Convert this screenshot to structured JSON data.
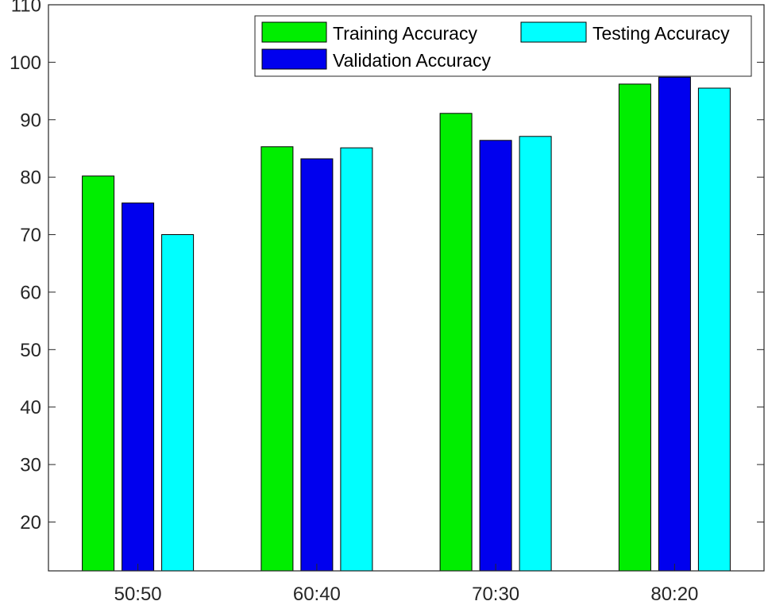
{
  "chart_data": {
    "type": "bar",
    "title": "",
    "xlabel": "",
    "ylabel": "",
    "categories": [
      "50:50",
      "60:40",
      "70:30",
      "80:20"
    ],
    "ylim": [
      11.5,
      110
    ],
    "yticks": [
      20,
      30,
      40,
      50,
      60,
      70,
      80,
      90,
      100,
      110
    ],
    "grid": false,
    "legend_position": "top-right",
    "series": [
      {
        "name": "Training Accuracy",
        "color": "#00ee00",
        "values": [
          80.2,
          85.3,
          91.1,
          96.2
        ]
      },
      {
        "name": "Validation Accuracy",
        "color": "#0000ee",
        "values": [
          75.5,
          83.2,
          86.4,
          97.4
        ]
      },
      {
        "name": "Testing Accuracy",
        "color": "#00ffff",
        "values": [
          70.0,
          85.1,
          87.1,
          95.5
        ]
      }
    ]
  }
}
